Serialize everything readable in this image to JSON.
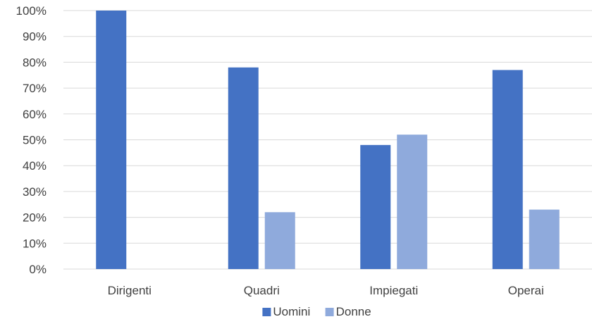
{
  "chart_data": {
    "type": "bar",
    "categories": [
      "Dirigenti",
      "Quadri",
      "Impiegati",
      "Operai"
    ],
    "series": [
      {
        "name": "Uomini",
        "values": [
          100,
          78,
          48,
          77
        ],
        "color": "#4472C4"
      },
      {
        "name": "Donne",
        "values": [
          0,
          22,
          52,
          23
        ],
        "color": "#8FAADC"
      }
    ],
    "yticks": [
      "0%",
      "10%",
      "20%",
      "30%",
      "40%",
      "50%",
      "60%",
      "70%",
      "80%",
      "90%",
      "100%"
    ],
    "ylim": [
      0,
      100
    ],
    "grid": true,
    "legend": "bottom",
    "gridline_color": "#D9D9D9"
  }
}
